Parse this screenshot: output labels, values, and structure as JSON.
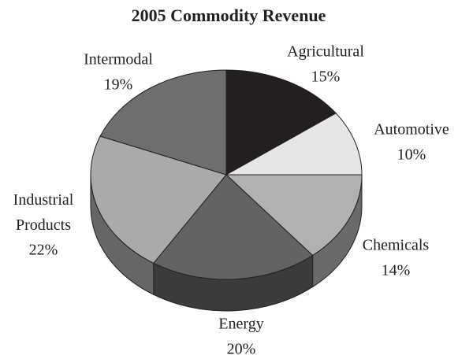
{
  "chart_data": {
    "type": "pie3d",
    "title": "2005 Commodity Revenue",
    "categories": [
      "Agricultural",
      "Automotive",
      "Chemicals",
      "Energy",
      "Industrial Products",
      "Intermodal"
    ],
    "values": [
      15,
      10,
      14,
      20,
      22,
      19
    ],
    "value_labels": [
      "15%",
      "10%",
      "14%",
      "20%",
      "22%",
      "19%"
    ],
    "colors": [
      "#231f20",
      "#e6e6e6",
      "#b0b1b3",
      "#636365",
      "#a9aaac",
      "#6d6e70"
    ]
  }
}
